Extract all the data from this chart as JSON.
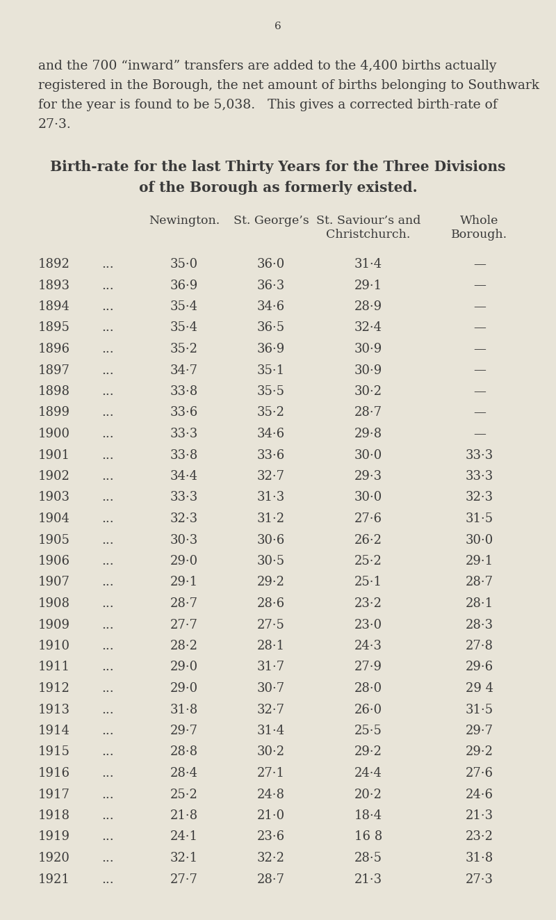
{
  "page_number": "6",
  "intro_lines": [
    "and the 700 “inward” transfers are added to the 4,400 births actually",
    "registered in the Borough, the net amount of births belonging to Southwark",
    "for the year is found to be 5,038.   This gives a corrected birth-rate of",
    "27·3."
  ],
  "title_line1": "Birth-rate for the last Thirty Years for the Three Divisions",
  "title_line2": "of the Borough as formerly existed.",
  "years": [
    1892,
    1893,
    1894,
    1895,
    1896,
    1897,
    1898,
    1899,
    1900,
    1901,
    1902,
    1903,
    1904,
    1905,
    1906,
    1907,
    1908,
    1909,
    1910,
    1911,
    1912,
    1913,
    1914,
    1915,
    1916,
    1917,
    1918,
    1919,
    1920,
    1921
  ],
  "newington": [
    "35·0",
    "36·9",
    "35·4",
    "35·4",
    "35·2",
    "34·7",
    "33·8",
    "33·6",
    "33·3",
    "33·8",
    "34·4",
    "33·3",
    "32·3",
    "30·3",
    "29·0",
    "29·1",
    "28·7",
    "27·7",
    "28·2",
    "29·0",
    "29·0",
    "31·8",
    "29·7",
    "28·8",
    "28·4",
    "25·2",
    "21·8",
    "24·1",
    "32·1",
    "27·7"
  ],
  "stgeorges": [
    "36·0",
    "36·3",
    "34·6",
    "36·5",
    "36·9",
    "35·1",
    "35·5",
    "35·2",
    "34·6",
    "33·6",
    "32·7",
    "31·3",
    "31·2",
    "30·6",
    "30·5",
    "29·2",
    "28·6",
    "27·5",
    "28·1",
    "31·7",
    "30·7",
    "32·7",
    "31·4",
    "30·2",
    "27·1",
    "24·8",
    "21·0",
    "23·6",
    "32·2",
    "28·7"
  ],
  "stsaviours": [
    "31·4",
    "29·1",
    "28·9",
    "32·4",
    "30·9",
    "30·9",
    "30·2",
    "28·7",
    "29·8",
    "30·0",
    "29·3",
    "30·0",
    "27·6",
    "26·2",
    "25·2",
    "25·1",
    "23·2",
    "23·0",
    "24·3",
    "27·9",
    "28·0",
    "26·0",
    "25·5",
    "29·2",
    "24·4",
    "20·2",
    "18·4",
    "16 8",
    "28·5",
    "21·3"
  ],
  "whole": [
    "—",
    "—",
    "—",
    "—",
    "—",
    "—",
    "—",
    "—",
    "—",
    "33·3",
    "33·3",
    "32·3",
    "31·5",
    "30·0",
    "29·1",
    "28·7",
    "28·1",
    "28·3",
    "27·8",
    "29·6",
    "29 4",
    "31·5",
    "29·7",
    "29·2",
    "27·6",
    "24·6",
    "21·3",
    "23·2",
    "31·8",
    "27·3"
  ],
  "bg_color": "#e8e4d8",
  "text_color": "#3a3a3a",
  "font_size_page_num": 11,
  "font_size_intro": 13.5,
  "font_size_title": 14.5,
  "font_size_header": 12.5,
  "font_size_data": 13.0
}
